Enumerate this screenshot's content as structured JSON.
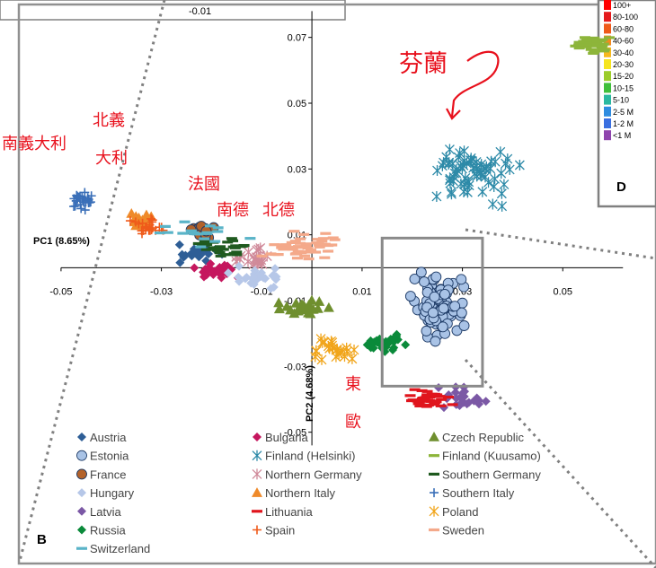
{
  "chart_data": {
    "type": "scatter",
    "title": "",
    "xlabel": "PC1 (8.65%)",
    "ylabel": "PC2 (4.68%)",
    "xlim": [
      -0.055,
      0.065
    ],
    "ylim": [
      -0.055,
      0.08
    ],
    "x_ticks": [
      "-0.05",
      "-0.03",
      "-0.01",
      "0.01",
      "0.03",
      "0.05"
    ],
    "y_ticks": [
      "0.07",
      "0.05",
      "0.03",
      "0.01",
      "-0.01",
      "-0.03",
      "-0.05"
    ],
    "zoom_box": {
      "x": [
        0.014,
        0.034
      ],
      "y": [
        -0.036,
        0.009
      ]
    },
    "series": [
      {
        "name": "Austria",
        "marker": "diamond",
        "color": "#2e5e96",
        "center": [
          -0.023,
          0.004
        ],
        "spread": [
          0.011,
          0.004
        ],
        "n": 22
      },
      {
        "name": "Bulgaria",
        "marker": "diamond",
        "color": "#c5175e",
        "center": [
          -0.019,
          -0.001
        ],
        "spread": [
          0.007,
          0.003
        ],
        "n": 30
      },
      {
        "name": "Czech Republic",
        "marker": "triangle",
        "color": "#6f8f2e",
        "center": [
          -0.002,
          -0.012
        ],
        "spread": [
          0.006,
          0.003
        ],
        "n": 22
      },
      {
        "name": "Estonia",
        "marker": "circle",
        "color": "#a9c3e6",
        "center": [
          0.025,
          -0.011
        ],
        "spread": [
          0.007,
          0.012
        ],
        "n": 90
      },
      {
        "name": "Finland (Helsinki)",
        "marker": "asterisk",
        "color": "#2d8aa8",
        "center": [
          0.032,
          0.029
        ],
        "spread": [
          0.012,
          0.012
        ],
        "n": 70
      },
      {
        "name": "Finland (Kuusamo)",
        "marker": "dash",
        "color": "#8db53a",
        "center": [
          0.056,
          0.068
        ],
        "spread": [
          0.004,
          0.004
        ],
        "n": 45
      },
      {
        "name": "France",
        "marker": "circle",
        "color": "#b3622a",
        "center": [
          -0.022,
          0.011
        ],
        "spread": [
          0.004,
          0.003
        ],
        "n": 16
      },
      {
        "name": "Northern Germany",
        "marker": "asterisk",
        "color": "#d08a9a",
        "center": [
          -0.012,
          0.003
        ],
        "spread": [
          0.005,
          0.004
        ],
        "n": 22
      },
      {
        "name": "Southern Germany",
        "marker": "dash",
        "color": "#1f5a1f",
        "center": [
          -0.017,
          0.006
        ],
        "spread": [
          0.007,
          0.004
        ],
        "n": 30
      },
      {
        "name": "Hungary",
        "marker": "diamond",
        "color": "#b6c7e8",
        "center": [
          -0.011,
          -0.003
        ],
        "spread": [
          0.007,
          0.004
        ],
        "n": 30
      },
      {
        "name": "Northern Italy",
        "marker": "triangle",
        "color": "#ef8a2a",
        "center": [
          -0.034,
          0.014
        ],
        "spread": [
          0.004,
          0.004
        ],
        "n": 14
      },
      {
        "name": "Southern Italy",
        "marker": "plus",
        "color": "#3a6fb8",
        "center": [
          -0.046,
          0.02
        ],
        "spread": [
          0.003,
          0.004
        ],
        "n": 28
      },
      {
        "name": "Latvia",
        "marker": "diamond",
        "color": "#7b58a5",
        "center": [
          0.029,
          -0.04
        ],
        "spread": [
          0.008,
          0.005
        ],
        "n": 24
      },
      {
        "name": "Lithuania",
        "marker": "dash",
        "color": "#e0141c",
        "center": [
          0.023,
          -0.04
        ],
        "spread": [
          0.006,
          0.004
        ],
        "n": 40
      },
      {
        "name": "Poland",
        "marker": "asterisk",
        "color": "#f1a51a",
        "center": [
          0.004,
          -0.025
        ],
        "spread": [
          0.007,
          0.005
        ],
        "n": 24
      },
      {
        "name": "Russia",
        "marker": "diamond",
        "color": "#0a8a3a",
        "center": [
          0.015,
          -0.023
        ],
        "spread": [
          0.006,
          0.004
        ],
        "n": 34
      },
      {
        "name": "Spain",
        "marker": "plus",
        "color": "#ef5a1a",
        "center": [
          -0.032,
          0.012
        ],
        "spread": [
          0.005,
          0.004
        ],
        "n": 22
      },
      {
        "name": "Sweden",
        "marker": "dash",
        "color": "#f4a98a",
        "center": [
          -0.002,
          0.006
        ],
        "spread": [
          0.01,
          0.006
        ],
        "n": 50
      },
      {
        "name": "Switzerland",
        "marker": "dash",
        "color": "#5ab4c8",
        "center": [
          -0.022,
          0.011
        ],
        "spread": [
          0.012,
          0.006
        ],
        "n": 18
      }
    ],
    "legend": {
      "placement": "bottom",
      "columns": 3
    },
    "annotations": [
      "南義大利",
      "北義",
      "大利",
      "法國",
      "南德",
      "北德",
      "芬蘭",
      "東",
      "歐"
    ]
  },
  "panels": {
    "left_label": "B",
    "right_label": "D"
  },
  "inset_top_left": {
    "tick": "-0.01"
  },
  "heat_legend": {
    "labels": [
      "100+",
      "80-100",
      "60-80",
      "40-60",
      "30-40",
      "20-30",
      "15-20",
      "10-15",
      "5-10",
      "2-5 M",
      "1-2 M",
      "<1 M"
    ],
    "colors": [
      "#ff0000",
      "#e41a1c",
      "#ef5a1a",
      "#f48a1e",
      "#f6b81f",
      "#f6e51f",
      "#9ccc2a",
      "#3fbf3a",
      "#2ab8a0",
      "#2e8ce0",
      "#3a6fe0",
      "#8e44ad"
    ]
  },
  "colors": {
    "annotation": "#e8101c",
    "border": "#808080",
    "dotted": "#808080"
  }
}
